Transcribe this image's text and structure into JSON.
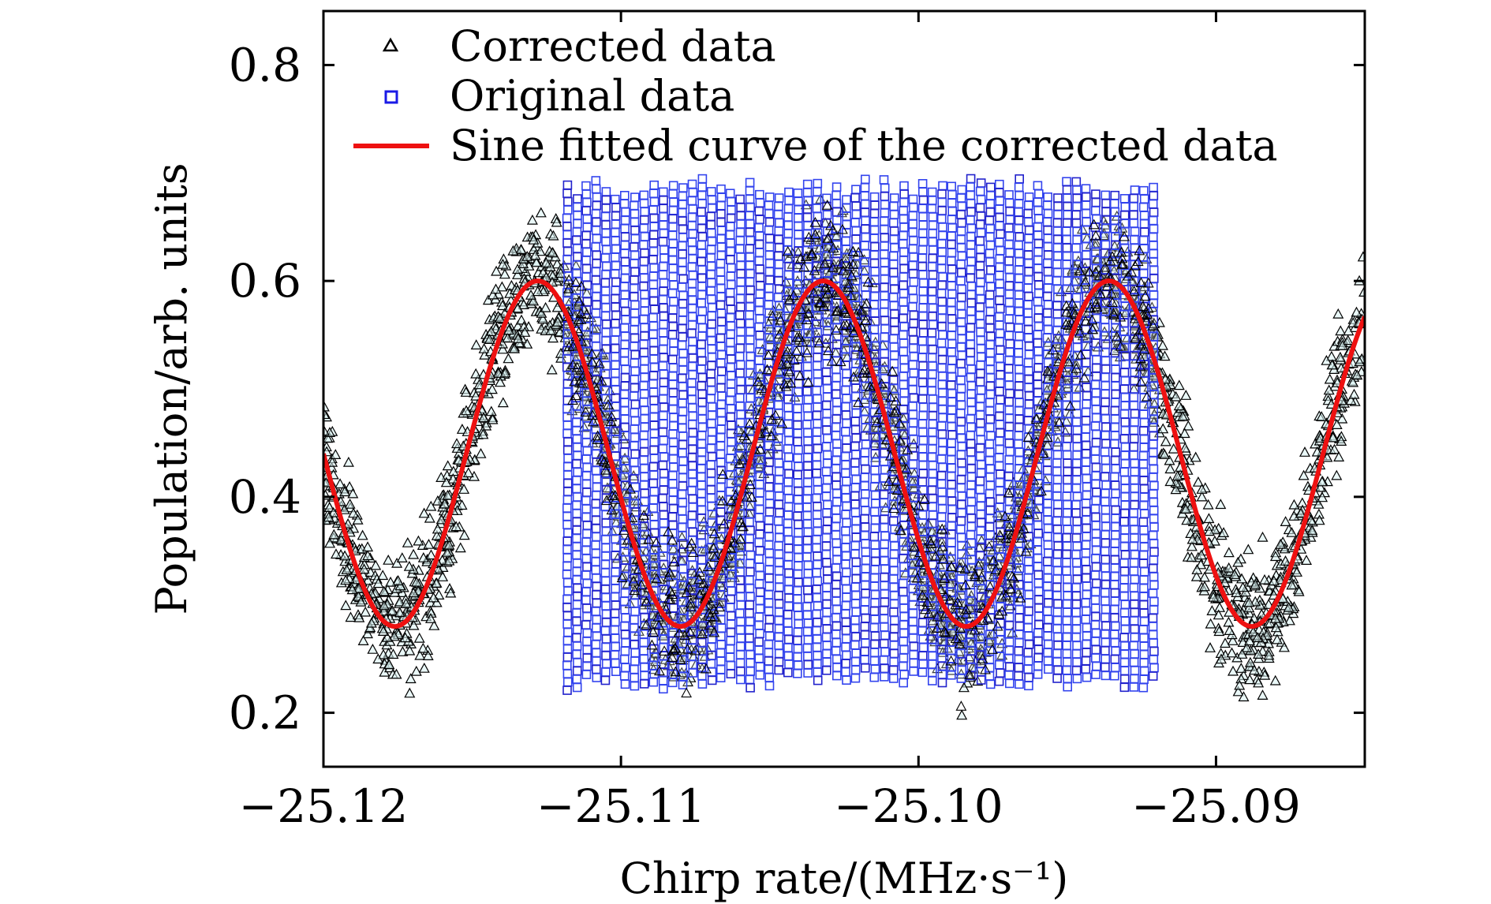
{
  "chart_data": {
    "type": "scatter",
    "xlabel": "Chirp rate/(MHz·s⁻¹)",
    "ylabel": "Population/arb. units",
    "xlim": [
      -25.12,
      -25.085
    ],
    "ylim": [
      0.15,
      0.85
    ],
    "xticks": [
      -25.12,
      -25.11,
      -25.1,
      -25.09
    ],
    "xtick_labels": [
      "−25.12",
      "−25.11",
      "−25.10",
      "−25.09"
    ],
    "yticks": [
      0.2,
      0.4,
      0.6,
      0.8
    ],
    "ytick_labels": [
      "0.2",
      "0.4",
      "0.6",
      "0.8"
    ],
    "legend": {
      "position": "top-left",
      "entries": [
        {
          "label": "Corrected data",
          "marker": "triangle",
          "color": "#000000"
        },
        {
          "label": "Original data",
          "marker": "square",
          "color": "#1a1ae6"
        },
        {
          "label": "Sine fitted curve of the corrected data",
          "marker": "line",
          "color": "#ee1111"
        }
      ]
    },
    "series": [
      {
        "name": "Corrected data",
        "kind": "scatter",
        "marker": "triangle",
        "color": "#000000",
        "x_range": [
          -25.12,
          -25.085
        ],
        "model": {
          "offset": 0.44,
          "amplitude": 0.16,
          "period": 0.0096,
          "peak_x": -25.1128
        },
        "scatter_band": 0.095
      },
      {
        "name": "Original data",
        "kind": "scatter",
        "marker": "square",
        "color": "#1a1ae6",
        "x_range": [
          -25.1118,
          -25.0921
        ],
        "y_range": [
          0.22,
          0.695
        ]
      },
      {
        "name": "Sine fitted curve of the corrected data",
        "kind": "line",
        "color": "#ee1111",
        "function": "y = 0.44 + 0.16*cos(2*pi*(x + 25.1128)/0.0096)",
        "peaks": [
          [
            -25.1128,
            0.6
          ],
          [
            -25.1032,
            0.6
          ],
          [
            -25.0936,
            0.6
          ]
        ],
        "troughs": [
          [
            -25.1176,
            0.28
          ],
          [
            -25.108,
            0.28
          ],
          [
            -25.0984,
            0.28
          ],
          [
            -25.0888,
            0.28
          ]
        ]
      }
    ]
  }
}
